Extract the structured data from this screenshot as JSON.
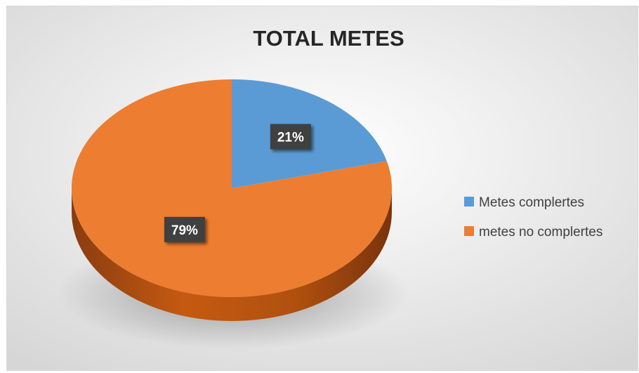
{
  "chart_data": {
    "type": "pie",
    "title": "TOTAL METES",
    "slices": [
      {
        "label": "Metes complertes",
        "value": 21,
        "display": "21%",
        "color": "#5b9bd5"
      },
      {
        "label": "metes no complertes",
        "value": 79,
        "display": "79%",
        "color": "#ed7d31"
      }
    ],
    "legend_position": "right",
    "style": "3d"
  },
  "colors": {
    "background_center": "#ffffff",
    "background_edge": "#d9d9d9",
    "side_dark": "#8a3c10",
    "side_light": "#c55a11",
    "label_box": "#404040",
    "title": "#262626",
    "legend_text": "#404040"
  }
}
